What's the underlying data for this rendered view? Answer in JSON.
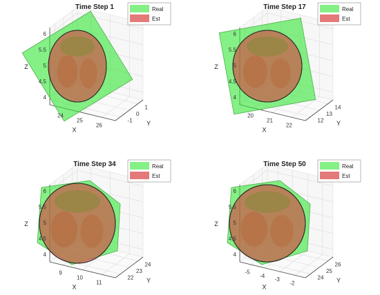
{
  "chart_data": [
    {
      "type": "3d-surface",
      "title": "Time Step 1",
      "xlabel": "X",
      "ylabel": "Y",
      "zlabel": "Z",
      "x_ticks": [
        "24",
        "25",
        "26"
      ],
      "y_ticks": [
        "-1",
        "0",
        "1"
      ],
      "z_ticks": [
        "4",
        "4.5",
        "5",
        "5.5",
        "6"
      ],
      "legend": [
        "Real",
        "Est"
      ],
      "legend_position": "top-right",
      "grid": true,
      "colors": {
        "real": "#33e633",
        "est": "#d94040"
      }
    },
    {
      "type": "3d-surface",
      "title": "Time Step 17",
      "xlabel": "X",
      "ylabel": "Y",
      "zlabel": "Z",
      "x_ticks": [
        "20",
        "21",
        "22"
      ],
      "y_ticks": [
        "12",
        "13",
        "14"
      ],
      "z_ticks": [
        "4",
        "4.5",
        "5",
        "5.5",
        "6"
      ],
      "legend": [
        "Real",
        "Est"
      ],
      "legend_position": "top-right",
      "grid": true,
      "colors": {
        "real": "#33e633",
        "est": "#d94040"
      }
    },
    {
      "type": "3d-surface",
      "title": "Time Step 34",
      "xlabel": "X",
      "ylabel": "Y",
      "zlabel": "Z",
      "x_ticks": [
        "9",
        "10",
        "11"
      ],
      "y_ticks": [
        "22",
        "23",
        "24"
      ],
      "z_ticks": [
        "4",
        "4.5",
        "5",
        "5.5",
        "6"
      ],
      "legend": [
        "Real",
        "Est"
      ],
      "legend_position": "top-right",
      "grid": true,
      "colors": {
        "real": "#33e633",
        "est": "#d94040"
      }
    },
    {
      "type": "3d-surface",
      "title": "Time Step 50",
      "xlabel": "X",
      "ylabel": "Y",
      "zlabel": "Z",
      "x_ticks": [
        "-5",
        "-4",
        "-3",
        "-2"
      ],
      "y_ticks": [
        "24",
        "25",
        "26"
      ],
      "z_ticks": [
        "4",
        "4.5",
        "5",
        "5.5",
        "6"
      ],
      "legend": [
        "Real",
        "Est"
      ],
      "legend_position": "top-right",
      "grid": true,
      "colors": {
        "real": "#33e633",
        "est": "#d94040"
      }
    }
  ]
}
